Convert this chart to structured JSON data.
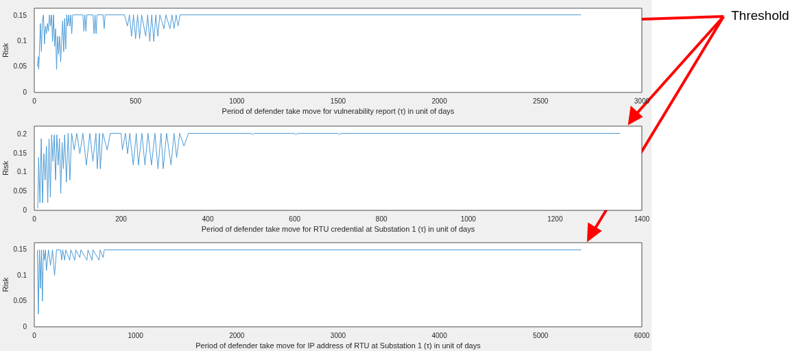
{
  "chart_data": [
    {
      "type": "line",
      "xlabel": "Period of defender take move for vulnerability report (τ) in unit of days",
      "ylabel": "Risk",
      "color": "#4a9ad6",
      "xlim": [
        0,
        3000
      ],
      "xticks": [
        0,
        500,
        1000,
        1500,
        2000,
        2500,
        3000
      ],
      "ylim": [
        0,
        0.165
      ],
      "yticks": [
        0,
        0.05,
        0.1,
        0.15
      ],
      "annotations": [
        "Threshold"
      ],
      "x": [
        15,
        20,
        22,
        25,
        30,
        35,
        40,
        45,
        50,
        55,
        60,
        65,
        70,
        75,
        80,
        85,
        90,
        95,
        100,
        105,
        110,
        115,
        120,
        125,
        130,
        135,
        140,
        145,
        150,
        155,
        160,
        165,
        170,
        175,
        180,
        185,
        190,
        240,
        245,
        250,
        255,
        260,
        290,
        295,
        300,
        305,
        310,
        340,
        345,
        350,
        445,
        460,
        470,
        480,
        490,
        500,
        510,
        520,
        530,
        550,
        560,
        570,
        580,
        590,
        600,
        610,
        620,
        640,
        650,
        670,
        680,
        690,
        700,
        710,
        720,
        2700
      ],
      "values": [
        0.05,
        0.07,
        0.045,
        0.08,
        0.135,
        0.08,
        0.14,
        0.152,
        0.095,
        0.13,
        0.115,
        0.135,
        0.12,
        0.152,
        0.13,
        0.152,
        0.1,
        0.152,
        0.09,
        0.125,
        0.045,
        0.11,
        0.075,
        0.11,
        0.06,
        0.1,
        0.14,
        0.08,
        0.145,
        0.085,
        0.152,
        0.13,
        0.152,
        0.13,
        0.152,
        0.115,
        0.152,
        0.152,
        0.12,
        0.152,
        0.12,
        0.152,
        0.152,
        0.115,
        0.152,
        0.115,
        0.152,
        0.152,
        0.125,
        0.152,
        0.152,
        0.13,
        0.152,
        0.11,
        0.152,
        0.105,
        0.152,
        0.105,
        0.152,
        0.11,
        0.152,
        0.1,
        0.152,
        0.1,
        0.152,
        0.11,
        0.152,
        0.125,
        0.152,
        0.125,
        0.152,
        0.125,
        0.152,
        0.13,
        0.152,
        0.152
      ]
    },
    {
      "type": "line",
      "xlabel": "Period of defender take move for RTU credential at Substation 1 (τ) in unit of days",
      "ylabel": "Risk",
      "color": "#4a9ad6",
      "xlim": [
        0,
        1400
      ],
      "xticks": [
        0,
        200,
        400,
        600,
        800,
        1000,
        1200,
        1400
      ],
      "ylim": [
        0,
        0.223
      ],
      "yticks": [
        0,
        0.05,
        0.1,
        0.15,
        0.2
      ],
      "x": [
        8,
        10,
        13,
        16,
        19,
        22,
        25,
        28,
        31,
        34,
        37,
        40,
        43,
        46,
        49,
        52,
        55,
        58,
        61,
        64,
        67,
        70,
        74,
        78,
        82,
        86,
        92,
        98,
        105,
        112,
        120,
        128,
        135,
        142,
        145,
        150,
        152,
        158,
        168,
        175,
        200,
        203,
        210,
        215,
        220,
        228,
        235,
        240,
        248,
        255,
        262,
        270,
        278,
        285,
        292,
        297,
        305,
        315,
        322,
        328,
        335,
        345,
        355,
        500,
        503,
        506,
        600,
        603,
        606,
        700,
        703,
        706,
        1350
      ],
      "values": [
        0.005,
        0.14,
        0.02,
        0.19,
        0.02,
        0.15,
        0.08,
        0.17,
        0.02,
        0.19,
        0.035,
        0.2,
        0.13,
        0.2,
        0.08,
        0.2,
        0.12,
        0.19,
        0.045,
        0.18,
        0.11,
        0.2,
        0.075,
        0.204,
        0.08,
        0.204,
        0.16,
        0.204,
        0.15,
        0.204,
        0.12,
        0.204,
        0.13,
        0.204,
        0.11,
        0.204,
        0.11,
        0.204,
        0.16,
        0.204,
        0.204,
        0.16,
        0.204,
        0.15,
        0.204,
        0.12,
        0.204,
        0.12,
        0.204,
        0.12,
        0.204,
        0.12,
        0.204,
        0.11,
        0.204,
        0.11,
        0.204,
        0.12,
        0.204,
        0.14,
        0.204,
        0.17,
        0.204,
        0.204,
        0.2,
        0.204,
        0.204,
        0.2,
        0.204,
        0.204,
        0.2,
        0.204,
        0.204
      ]
    },
    {
      "type": "line",
      "xlabel": "Period of defender take move for IP address of RTU at Substation 1 (τ) in unit of days",
      "ylabel": "Risk",
      "color": "#4a9ad6",
      "xlim": [
        0,
        6000
      ],
      "xticks": [
        0,
        1000,
        2000,
        3000,
        4000,
        5000,
        6000
      ],
      "ylim": [
        0,
        0.164
      ],
      "yticks": [
        0,
        0.05,
        0.1,
        0.15
      ],
      "x": [
        30,
        40,
        50,
        60,
        70,
        80,
        90,
        100,
        110,
        120,
        140,
        160,
        180,
        200,
        220,
        260,
        270,
        280,
        300,
        310,
        350,
        360,
        400,
        410,
        450,
        460,
        520,
        530,
        570,
        580,
        640,
        650,
        680,
        690,
        5400
      ],
      "values": [
        0.15,
        0.025,
        0.15,
        0.075,
        0.15,
        0.05,
        0.15,
        0.13,
        0.15,
        0.11,
        0.15,
        0.12,
        0.15,
        0.1,
        0.15,
        0.15,
        0.13,
        0.15,
        0.13,
        0.15,
        0.13,
        0.15,
        0.13,
        0.15,
        0.135,
        0.15,
        0.13,
        0.15,
        0.13,
        0.15,
        0.13,
        0.15,
        0.135,
        0.15,
        0.15
      ]
    }
  ]
}
